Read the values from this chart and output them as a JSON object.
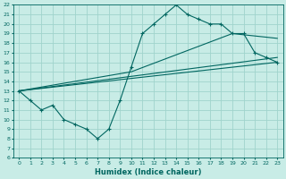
{
  "xlabel": "Humidex (Indice chaleur)",
  "bg_color": "#c8ece6",
  "grid_color": "#a0d4cc",
  "line_color": "#006660",
  "xlim": [
    -0.5,
    23.5
  ],
  "ylim": [
    6,
    22
  ],
  "xticks": [
    0,
    1,
    2,
    3,
    4,
    5,
    6,
    7,
    8,
    9,
    10,
    11,
    12,
    13,
    14,
    15,
    16,
    17,
    18,
    19,
    20,
    21,
    22,
    23
  ],
  "yticks": [
    6,
    7,
    8,
    9,
    10,
    11,
    12,
    13,
    14,
    15,
    16,
    17,
    18,
    19,
    20,
    21,
    22
  ],
  "line1_x": [
    0,
    1,
    2,
    3,
    4,
    5,
    6,
    7,
    8,
    9,
    10,
    11,
    12,
    13,
    14,
    15,
    16,
    17,
    18,
    19,
    20,
    21,
    22,
    23
  ],
  "line1_y": [
    13,
    12,
    11,
    11.5,
    10,
    9.5,
    9,
    8,
    9,
    12,
    15.5,
    19,
    20,
    21,
    22,
    21,
    20.5,
    20,
    20,
    19,
    19,
    17,
    16.5,
    16
  ],
  "line2_x": [
    0,
    10,
    19,
    23
  ],
  "line2_y": [
    13,
    15,
    19,
    18.5
  ],
  "line3_x": [
    0,
    23
  ],
  "line3_y": [
    13,
    16
  ],
  "line4_x": [
    0,
    23
  ],
  "line4_y": [
    13,
    16.5
  ]
}
